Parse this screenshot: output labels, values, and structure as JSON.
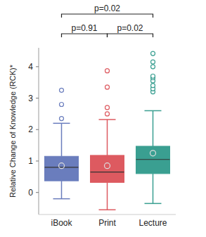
{
  "chart_data": {
    "type": "box",
    "y_label": "Relative Change of Knowledge (RCK)*",
    "categories": [
      "iBook",
      "Print",
      "Lecture"
    ],
    "ylim": [
      -0.7,
      4.6
    ],
    "yticks": [
      0,
      1,
      2,
      3,
      4
    ],
    "grid": false,
    "boxes": [
      {
        "name": "iBook",
        "color": "#6a7dbd",
        "whisker_low": -0.2,
        "q1": 0.37,
        "median": 0.8,
        "q3": 1.15,
        "whisker_high": 2.2,
        "mean": 0.85,
        "outliers": [
          2.35,
          2.8,
          3.25
        ]
      },
      {
        "name": "Print",
        "color": "#dd5a60",
        "whisker_low": -0.55,
        "q1": 0.32,
        "median": 0.65,
        "q3": 1.18,
        "whisker_high": 2.32,
        "mean": 0.85,
        "outliers": [
          2.5,
          2.7,
          3.35,
          3.87
        ]
      },
      {
        "name": "Lecture",
        "color": "#3a9f91",
        "whisker_low": -0.35,
        "q1": 0.6,
        "median": 1.05,
        "q3": 1.47,
        "whisker_high": 2.6,
        "mean": 1.25,
        "outliers": [
          3.2,
          3.3,
          3.4,
          3.55,
          3.65,
          3.7,
          4.0,
          4.15,
          4.42
        ]
      }
    ],
    "annotations": [
      {
        "text": "p=0.02",
        "from": "iBook",
        "to": "Lecture"
      },
      {
        "text": "p=0.91",
        "from": "iBook",
        "to": "Print"
      },
      {
        "text": "p=0.02",
        "from": "Print",
        "to": "Lecture"
      }
    ]
  }
}
